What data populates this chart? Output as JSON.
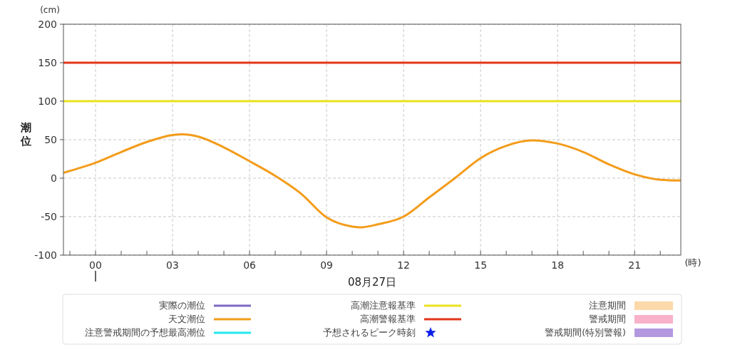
{
  "chart_data": {
    "type": "line",
    "xlabel": "08月27日",
    "ylabel": "潮位",
    "annotations": [
      "(cm)",
      "(時)"
    ],
    "xlim": [
      -1.25,
      22.8
    ],
    "ylim": [
      -100,
      200
    ],
    "xticks": [
      {
        "value": -1,
        "label": null
      },
      {
        "value": 0,
        "label": "00"
      },
      {
        "value": 1,
        "label": null
      },
      {
        "value": 2,
        "label": null
      },
      {
        "value": 3,
        "label": "03"
      },
      {
        "value": 4,
        "label": null
      },
      {
        "value": 5,
        "label": null
      },
      {
        "value": 6,
        "label": "06"
      },
      {
        "value": 7,
        "label": null
      },
      {
        "value": 8,
        "label": null
      },
      {
        "value": 9,
        "label": "09"
      },
      {
        "value": 10,
        "label": null
      },
      {
        "value": 11,
        "label": null
      },
      {
        "value": 12,
        "label": "12"
      },
      {
        "value": 13,
        "label": null
      },
      {
        "value": 14,
        "label": null
      },
      {
        "value": 15,
        "label": "15"
      },
      {
        "value": 16,
        "label": null
      },
      {
        "value": 17,
        "label": null
      },
      {
        "value": 18,
        "label": "18"
      },
      {
        "value": 19,
        "label": null
      },
      {
        "value": 20,
        "label": null
      },
      {
        "value": 21,
        "label": "21"
      },
      {
        "value": 22,
        "label": null
      }
    ],
    "yticks": [
      -100,
      -50,
      0,
      50,
      100,
      150,
      200
    ],
    "grid": true,
    "legend": "bottom",
    "line_style": "solid",
    "ref_lines": [
      {
        "axis": "y",
        "value": 100,
        "label": "高潮注意報基準",
        "color": "#ebe21e"
      },
      {
        "axis": "y",
        "value": 150,
        "label": "高潮警報基準",
        "color": "#e2361a"
      }
    ],
    "series": [
      {
        "name": "実際の潮位",
        "type": "line",
        "color": "#7e68c4"
      },
      {
        "name": "天文潮位",
        "color": "#f39c1a",
        "x": [
          -1.25,
          0,
          1,
          2,
          3,
          3.4,
          4,
          5,
          6,
          7,
          8,
          9,
          10,
          10.3,
          11,
          12,
          13,
          14,
          15,
          16,
          17,
          18,
          19,
          20,
          21,
          22,
          22.8
        ],
        "values": [
          7,
          20,
          34,
          47,
          56,
          57,
          54,
          40,
          22,
          3,
          -20,
          -51,
          -63,
          -64,
          -60,
          -50,
          -25,
          0,
          26,
          42,
          49,
          45,
          34,
          18,
          5,
          -2,
          -3
        ]
      },
      {
        "name": "注意警戒期間の予想最高潮位",
        "type": "line",
        "color": "#25e8ee"
      },
      {
        "name": "予想されるピーク時刻",
        "type": "scatter",
        "marker": "star",
        "color": "#0a1ee8"
      },
      {
        "name": "注意期間",
        "type": "area",
        "color": "#fcd9aa"
      },
      {
        "name": "警戒期間",
        "type": "area",
        "color": "#f8b2c9"
      },
      {
        "name": "警戒期間(特別警報)",
        "type": "area",
        "color": "#b398e0"
      }
    ]
  }
}
